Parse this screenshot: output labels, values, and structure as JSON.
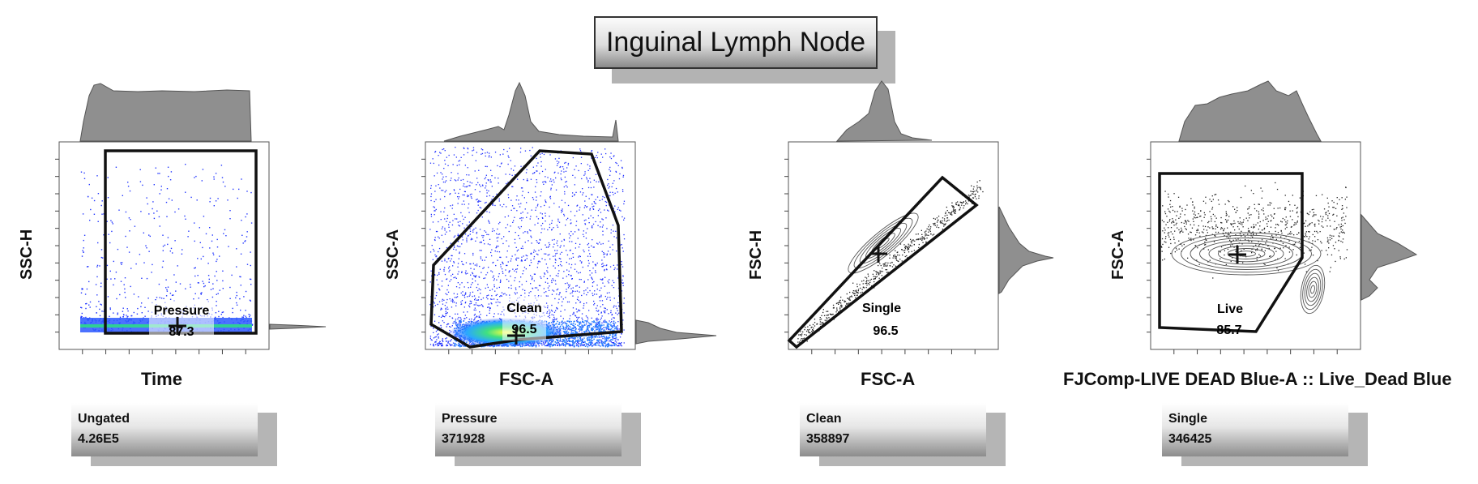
{
  "title": "Inguinal Lymph Node",
  "chart_data": [
    {
      "type": "scatter",
      "xlabel": "Time",
      "ylabel": "SSC-H",
      "gate": {
        "name": "Pressure",
        "value": "87.3"
      },
      "parent": {
        "name": "Ungated",
        "count": "4.26E5"
      },
      "style": "pseudocolor-dots",
      "histogram_top": "flat plateau",
      "histogram_right": "sharp low peak"
    },
    {
      "type": "scatter",
      "xlabel": "FSC-A",
      "ylabel": "SSC-A",
      "gate": {
        "name": "Clean",
        "value": "96.5"
      },
      "parent": {
        "name": "Pressure",
        "count": "371928"
      },
      "style": "pseudocolor-density",
      "histogram_top": "peak",
      "histogram_right": "low peak"
    },
    {
      "type": "scatter",
      "xlabel": "FSC-A",
      "ylabel": "FSC-H",
      "gate": {
        "name": "Single",
        "value": "96.5"
      },
      "parent": {
        "name": "Clean",
        "count": "358897"
      },
      "style": "contour-dots",
      "histogram_top": "peak",
      "histogram_right": "mid peak"
    },
    {
      "type": "scatter",
      "xlabel": "FJComp-LIVE DEAD Blue-A :: Live_Dead Blue",
      "ylabel": "FSC-A",
      "gate": {
        "name": "Live",
        "value": "85.7"
      },
      "parent": {
        "name": "Single",
        "count": "346425"
      },
      "style": "contour-dots",
      "histogram_top": "broad",
      "histogram_right": "mid peak",
      "x_scale": "log"
    }
  ]
}
